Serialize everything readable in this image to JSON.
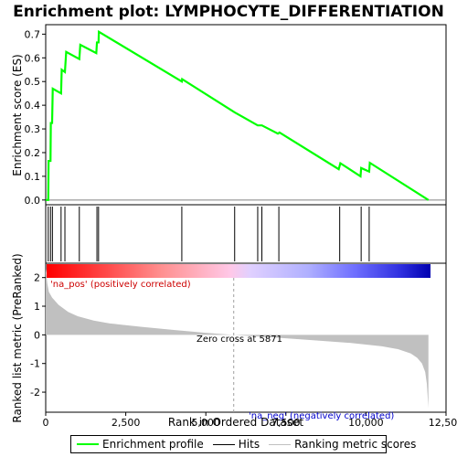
{
  "chart_data": {
    "type": "line",
    "title": "Enrichment plot: LYMPHOCYTE_DIFFERENTIATION",
    "top_panel": {
      "ylabel": "Enrichment score (ES)",
      "ylim": [
        -0.02,
        0.74
      ],
      "yticks": [
        "0.0",
        "0.1",
        "0.2",
        "0.3",
        "0.4",
        "0.5",
        "0.6",
        "0.7"
      ],
      "series": [
        {
          "name": "Enrichment profile",
          "color": "#00ff00",
          "x": [
            0,
            80,
            90,
            150,
            160,
            200,
            220,
            480,
            500,
            600,
            640,
            1050,
            1080,
            1580,
            1600,
            1650,
            1660,
            4250,
            4260,
            5900,
            6620,
            6750,
            7250,
            7300,
            9150,
            9200,
            9830,
            9850,
            10100,
            10120,
            11950
          ],
          "y": [
            0.0,
            0.0,
            0.165,
            0.165,
            0.325,
            0.325,
            0.47,
            0.45,
            0.55,
            0.54,
            0.625,
            0.595,
            0.655,
            0.62,
            0.665,
            0.665,
            0.71,
            0.5,
            0.51,
            0.37,
            0.315,
            0.315,
            0.28,
            0.285,
            0.13,
            0.155,
            0.1,
            0.135,
            0.12,
            0.157,
            0.0
          ]
        }
      ]
    },
    "hits": [
      80,
      150,
      210,
      480,
      600,
      1050,
      1600,
      1650,
      4250,
      5900,
      6620,
      6750,
      7280,
      9180,
      9850,
      10100
    ],
    "bottom_panel": {
      "ylabel": "Ranked list metric (PreRanked)",
      "xlabel": "Rank in Ordered Dataset",
      "ylim": [
        -2.7,
        2.5
      ],
      "yticks": [
        "2",
        "1",
        "0",
        "-1",
        "-2"
      ],
      "xlim": [
        0,
        12500
      ],
      "xticks": [
        "0",
        "2,500",
        "5,000",
        "7,500",
        "10,000",
        "12,500"
      ],
      "metric_series": {
        "name": "Ranking metric scores",
        "color": "#c0c0c0",
        "x": [
          0,
          50,
          100,
          200,
          400,
          700,
          1000,
          1500,
          2000,
          3000,
          4000,
          5000,
          5871,
          6500,
          7500,
          8500,
          9500,
          10500,
          11000,
          11400,
          11600,
          11750,
          11850,
          11900,
          11950
        ],
        "y": [
          2.3,
          1.8,
          1.5,
          1.3,
          1.05,
          0.8,
          0.65,
          0.5,
          0.4,
          0.28,
          0.17,
          0.07,
          0.0,
          -0.05,
          -0.12,
          -0.2,
          -0.28,
          -0.4,
          -0.5,
          -0.65,
          -0.8,
          -1.0,
          -1.3,
          -1.7,
          -2.55
        ]
      },
      "annotations": {
        "pos": "'na_pos' (positively correlated)",
        "neg": "'na_neg' (negatively correlated)",
        "zero": "Zero cross at 5871"
      }
    },
    "legend": [
      {
        "label": "Enrichment profile",
        "color": "#00ff00"
      },
      {
        "label": "Hits",
        "color": "#000000"
      },
      {
        "label": "Ranking metric scores",
        "color": "#c0c0c0"
      }
    ]
  }
}
